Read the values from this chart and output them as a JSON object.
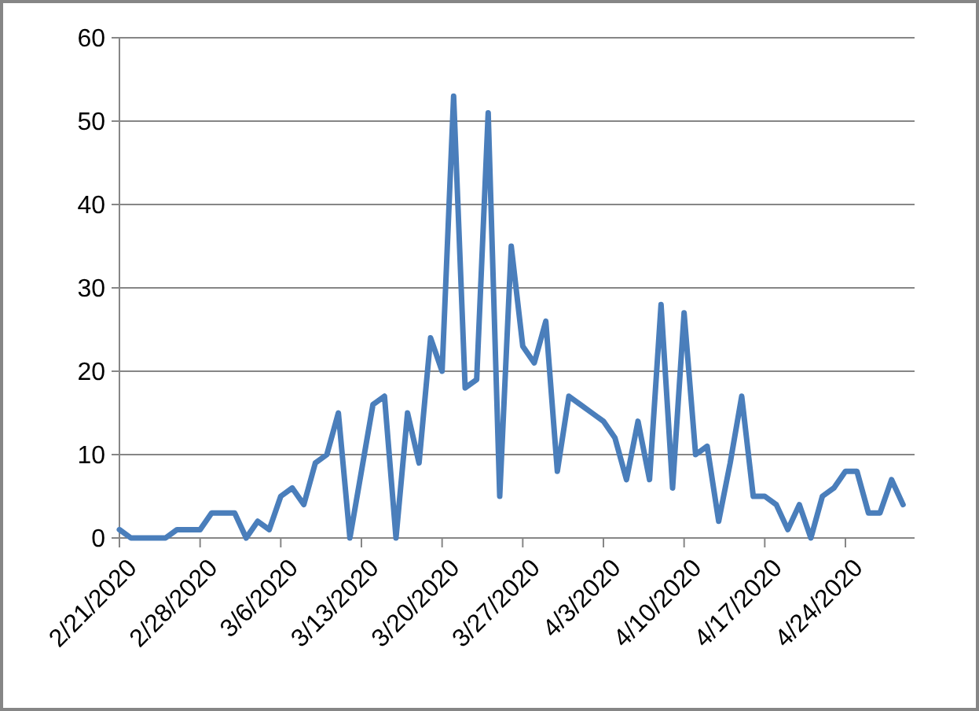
{
  "chart_data": {
    "type": "line",
    "x": [
      "2020-02-21",
      "2020-02-22",
      "2020-02-23",
      "2020-02-24",
      "2020-02-25",
      "2020-02-26",
      "2020-02-27",
      "2020-02-28",
      "2020-02-29",
      "2020-03-01",
      "2020-03-02",
      "2020-03-03",
      "2020-03-04",
      "2020-03-05",
      "2020-03-06",
      "2020-03-07",
      "2020-03-08",
      "2020-03-09",
      "2020-03-10",
      "2020-03-11",
      "2020-03-12",
      "2020-03-13",
      "2020-03-14",
      "2020-03-15",
      "2020-03-16",
      "2020-03-17",
      "2020-03-18",
      "2020-03-19",
      "2020-03-20",
      "2020-03-21",
      "2020-03-22",
      "2020-03-23",
      "2020-03-24",
      "2020-03-25",
      "2020-03-26",
      "2020-03-27",
      "2020-03-28",
      "2020-03-29",
      "2020-03-30",
      "2020-03-31",
      "2020-04-01",
      "2020-04-02",
      "2020-04-03",
      "2020-04-04",
      "2020-04-05",
      "2020-04-06",
      "2020-04-07",
      "2020-04-08",
      "2020-04-09",
      "2020-04-10",
      "2020-04-11",
      "2020-04-12",
      "2020-04-13",
      "2020-04-14",
      "2020-04-15",
      "2020-04-16",
      "2020-04-17",
      "2020-04-18",
      "2020-04-19",
      "2020-04-20",
      "2020-04-21",
      "2020-04-22",
      "2020-04-23",
      "2020-04-24",
      "2020-04-25",
      "2020-04-26",
      "2020-04-27",
      "2020-04-28",
      "2020-04-29"
    ],
    "series": [
      {
        "color": "#4a7ebb",
        "values": [
          1,
          0,
          0,
          0,
          0,
          1,
          1,
          1,
          3,
          3,
          3,
          0,
          2,
          1,
          5,
          6,
          4,
          9,
          10,
          15,
          0,
          8,
          16,
          17,
          0,
          15,
          9,
          24,
          20,
          53,
          18,
          19,
          51,
          5,
          35,
          23,
          21,
          26,
          8,
          17,
          16,
          15,
          14,
          12,
          7,
          14,
          7,
          28,
          6,
          27,
          10,
          11,
          2,
          9,
          17,
          5,
          5,
          4,
          1,
          4,
          0,
          5,
          6,
          8,
          8,
          3,
          3,
          7,
          4
        ]
      }
    ],
    "xlim": [
      "2020-02-21",
      "2020-04-30"
    ],
    "xticks": [
      {
        "value": "2020-02-21",
        "label": "2/21/2020"
      },
      {
        "value": "2020-02-28",
        "label": "2/28/2020"
      },
      {
        "value": "2020-03-06",
        "label": "3/6/2020"
      },
      {
        "value": "2020-03-13",
        "label": "3/13/2020"
      },
      {
        "value": "2020-03-20",
        "label": "3/20/2020"
      },
      {
        "value": "2020-03-27",
        "label": "3/27/2020"
      },
      {
        "value": "2020-04-03",
        "label": "4/3/2020"
      },
      {
        "value": "2020-04-10",
        "label": "4/10/2020"
      },
      {
        "value": "2020-04-17",
        "label": "4/17/2020"
      },
      {
        "value": "2020-04-24",
        "label": "4/24/2020"
      }
    ],
    "ylim": [
      0,
      60
    ],
    "yticks": [
      0,
      10,
      20,
      30,
      40,
      50,
      60
    ],
    "grid": "y",
    "marker": "none",
    "line_style": "solid"
  }
}
